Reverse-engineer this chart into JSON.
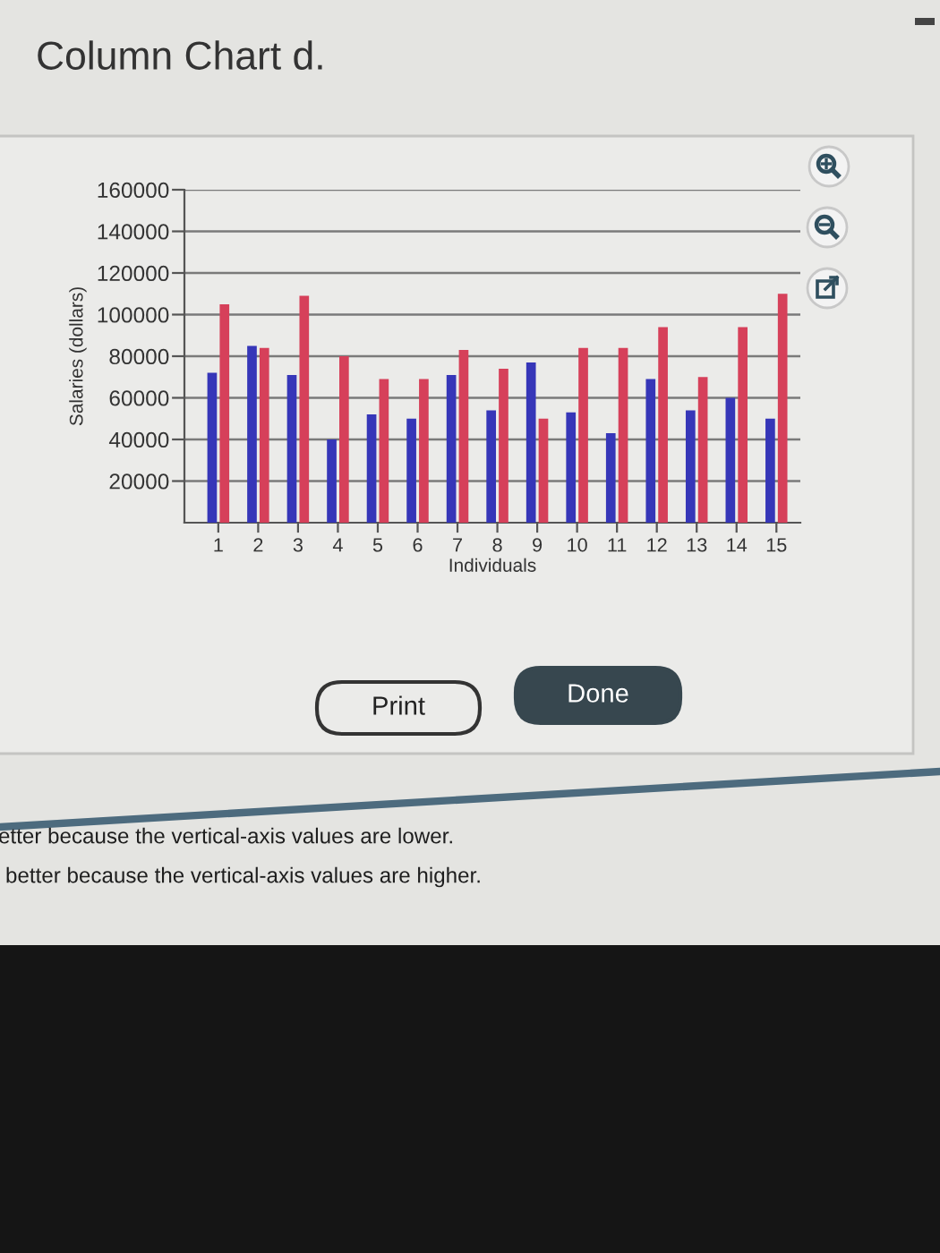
{
  "chart_data": {
    "type": "bar",
    "title": "Column Chart d.",
    "xlabel": "Individuals",
    "ylabel": "Salaries (dollars)",
    "categories": [
      "1",
      "2",
      "3",
      "4",
      "5",
      "6",
      "7",
      "8",
      "9",
      "10",
      "11",
      "12",
      "13",
      "14",
      "15"
    ],
    "series": [
      {
        "color": "#3636b8",
        "values": [
          72000,
          85000,
          71000,
          40000,
          52000,
          50000,
          71000,
          54000,
          77000,
          53000,
          43000,
          69000,
          54000,
          60000,
          50000
        ]
      },
      {
        "color": "#d6405a",
        "values": [
          105000,
          84000,
          109000,
          80000,
          69000,
          69000,
          83000,
          74000,
          50000,
          84000,
          84000,
          94000,
          70000,
          94000,
          110000
        ]
      }
    ],
    "ylim": [
      0,
      160000
    ],
    "yticks": [
      20000,
      40000,
      60000,
      80000,
      100000,
      120000,
      140000,
      160000
    ],
    "grid": "y",
    "annotations": [
      "Print",
      "Done",
      "etter because the vertical-axis values are lower.",
      "better because the vertical-axis values are higher."
    ]
  }
}
